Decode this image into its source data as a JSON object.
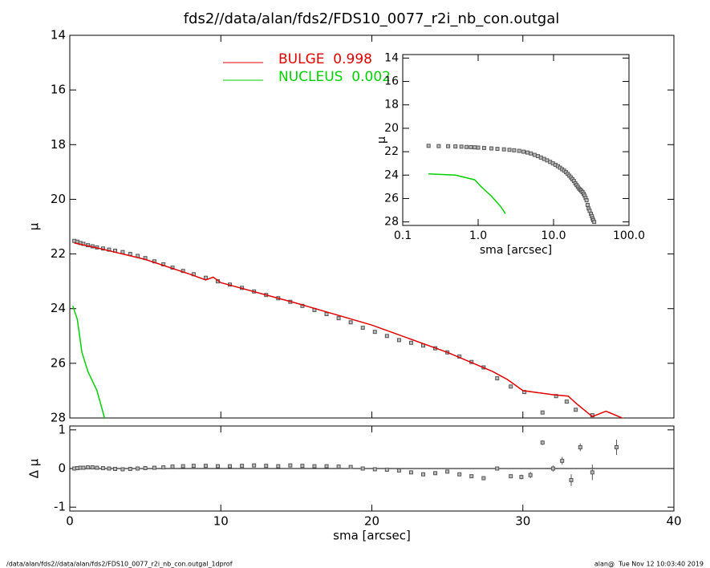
{
  "chart_data": [
    {
      "type": "scatter",
      "title": "fds2//data/alan/fds2/FDS10_0077_r2i_nb_con.outgal",
      "ylabel": "μ",
      "xlim": [
        0,
        40
      ],
      "ylim": [
        28,
        14
      ],
      "yticks": [
        14,
        16,
        18,
        20,
        22,
        24,
        26,
        28
      ],
      "series": [
        {
          "mode": "markers",
          "color": "#555555",
          "x": [
            0.3,
            0.5,
            0.7,
            0.9,
            1.2,
            1.5,
            1.8,
            2.2,
            2.6,
            3.0,
            3.5,
            4.0,
            4.5,
            5.0,
            5.6,
            6.2,
            6.8,
            7.5,
            8.2,
            9.0,
            9.8,
            10.6,
            11.4,
            12.2,
            13.0,
            13.8,
            14.6,
            15.4,
            16.2,
            17.0,
            17.8,
            18.6,
            19.4,
            20.2,
            21.0,
            21.8,
            22.6,
            23.4,
            24.2,
            25.0,
            25.8,
            26.6,
            27.4,
            28.3,
            29.2,
            30.1,
            31.3,
            32.2,
            32.9,
            33.5,
            34.6
          ],
          "values": [
            21.52,
            21.55,
            21.6,
            21.63,
            21.68,
            21.72,
            21.76,
            21.8,
            21.84,
            21.88,
            21.93,
            22.0,
            22.07,
            22.15,
            22.27,
            22.38,
            22.5,
            22.62,
            22.74,
            22.87,
            23.0,
            23.12,
            23.24,
            23.37,
            23.5,
            23.62,
            23.75,
            23.9,
            24.05,
            24.2,
            24.35,
            24.5,
            24.7,
            24.85,
            25.0,
            25.15,
            25.25,
            25.35,
            25.45,
            25.6,
            25.75,
            25.95,
            26.15,
            26.55,
            26.85,
            27.05,
            27.8,
            27.2,
            27.4,
            27.7,
            27.9
          ]
        },
        {
          "name": "BULGE  0.998",
          "mode": "lines",
          "color": "#e00000",
          "x": [
            0.3,
            2,
            5,
            8,
            9,
            9.5,
            10,
            15,
            20,
            25,
            28,
            29,
            30,
            32,
            33,
            33.5,
            34.6,
            35.5,
            37
          ],
          "values": [
            21.6,
            21.8,
            22.2,
            22.75,
            22.95,
            22.85,
            23.05,
            23.8,
            24.6,
            25.6,
            26.3,
            26.6,
            27.0,
            27.15,
            27.2,
            27.45,
            27.95,
            27.75,
            28.1
          ]
        },
        {
          "name": "NUCLEUS  0.002",
          "mode": "lines",
          "color": "#00d000",
          "x": [
            0.2,
            0.5,
            0.8,
            1.2,
            1.8,
            2.3
          ],
          "values": [
            23.9,
            24.4,
            25.6,
            26.3,
            27.0,
            28.0
          ]
        }
      ]
    },
    {
      "type": "scatter",
      "xlabel": "sma [arcsec]",
      "ylabel": "Δ μ",
      "xlim": [
        0,
        40
      ],
      "xticks": [
        0,
        10,
        20,
        30,
        40
      ],
      "ylim": [
        -1.1,
        1.1
      ],
      "yticks": [
        1,
        0,
        -1
      ],
      "series": [
        {
          "mode": "markers",
          "color": "#555555",
          "x": [
            0.3,
            0.5,
            0.7,
            0.9,
            1.2,
            1.5,
            1.8,
            2.2,
            2.6,
            3.0,
            3.5,
            4.0,
            4.5,
            5.0,
            5.6,
            6.2,
            6.8,
            7.5,
            8.2,
            9.0,
            9.8,
            10.6,
            11.4,
            12.2,
            13.0,
            13.8,
            14.6,
            15.4,
            16.2,
            17.0,
            17.8,
            18.6,
            19.4,
            20.2,
            21.0,
            21.8,
            22.6,
            23.4,
            24.2,
            25.0,
            25.8,
            26.6,
            27.4,
            28.3,
            29.2,
            29.9,
            30.5,
            31.3,
            32.0,
            32.6,
            33.2,
            33.8,
            34.6,
            36.2
          ],
          "values": [
            0.0,
            0.01,
            0.02,
            0.02,
            0.03,
            0.03,
            0.02,
            0.01,
            0.0,
            -0.01,
            -0.02,
            -0.01,
            0.0,
            0.01,
            0.02,
            0.03,
            0.05,
            0.06,
            0.07,
            0.07,
            0.06,
            0.06,
            0.07,
            0.08,
            0.07,
            0.06,
            0.08,
            0.07,
            0.06,
            0.06,
            0.05,
            0.04,
            0.0,
            -0.02,
            -0.03,
            -0.05,
            -0.1,
            -0.15,
            -0.12,
            -0.08,
            -0.15,
            -0.2,
            -0.25,
            0.0,
            -0.2,
            -0.22,
            -0.17,
            0.67,
            0.0,
            0.2,
            -0.3,
            0.55,
            -0.1,
            0.55
          ],
          "errors": [
            0.02,
            0.02,
            0.02,
            0.02,
            0.02,
            0.02,
            0.02,
            0.02,
            0.02,
            0.02,
            0.02,
            0.02,
            0.02,
            0.02,
            0.02,
            0.02,
            0.02,
            0.02,
            0.02,
            0.02,
            0.02,
            0.02,
            0.02,
            0.02,
            0.02,
            0.02,
            0.02,
            0.02,
            0.02,
            0.02,
            0.02,
            0.02,
            0.02,
            0.02,
            0.02,
            0.02,
            0.02,
            0.02,
            0.02,
            0.02,
            0.02,
            0.02,
            0.02,
            0.03,
            0.05,
            0.06,
            0.08,
            0.06,
            0.08,
            0.1,
            0.15,
            0.1,
            0.2,
            0.2
          ]
        }
      ]
    },
    {
      "type": "scatter",
      "log_x": true,
      "xlabel": "sma [arcsec]",
      "ylabel": "μ",
      "xlim": [
        0.1,
        100
      ],
      "xticks": [
        0.1,
        {
          "value": 1,
          "label": "1.0"
        },
        {
          "value": 10,
          "label": "10.0"
        },
        {
          "value": 100,
          "label": "100.0"
        }
      ],
      "ylim": [
        28.3,
        13.7
      ],
      "yticks": [
        14,
        16,
        18,
        20,
        22,
        24,
        26,
        28
      ],
      "series": [
        {
          "mode": "markers",
          "color": "#555555",
          "x": [
            0.22,
            0.3,
            0.4,
            0.5,
            0.6,
            0.7,
            0.8,
            0.9,
            1.0,
            1.2,
            1.5,
            1.8,
            2.2,
            2.6,
            3.0,
            3.5,
            4.0,
            4.5,
            5.0,
            5.6,
            6.2,
            6.8,
            7.5,
            8.2,
            9.0,
            9.8,
            10.6,
            11.4,
            12.2,
            13.0,
            13.8,
            14.6,
            15.4,
            16.2,
            17.0,
            17.8,
            18.6,
            19.4,
            20.2,
            21.0,
            21.8,
            22.6,
            23.4,
            24.2,
            25.0,
            25.8,
            26.6,
            27.4,
            28.3,
            29.2,
            30.1,
            31.3,
            32.2,
            32.9,
            33.5,
            34.6
          ],
          "values": [
            21.5,
            21.52,
            21.53,
            21.55,
            21.57,
            21.6,
            21.61,
            21.63,
            21.65,
            21.68,
            21.72,
            21.76,
            21.8,
            21.84,
            21.88,
            21.93,
            22.0,
            22.07,
            22.15,
            22.27,
            22.38,
            22.5,
            22.62,
            22.74,
            22.87,
            23.0,
            23.12,
            23.24,
            23.37,
            23.5,
            23.62,
            23.75,
            23.9,
            24.05,
            24.2,
            24.35,
            24.5,
            24.7,
            24.85,
            25.0,
            25.15,
            25.25,
            25.35,
            25.45,
            25.6,
            25.75,
            25.95,
            26.15,
            26.55,
            26.85,
            27.05,
            27.3,
            27.5,
            27.7,
            27.85,
            28.0
          ]
        },
        {
          "mode": "lines",
          "color": "#00d000",
          "x": [
            0.22,
            0.5,
            0.9,
            1.1,
            1.5,
            2.0,
            2.3
          ],
          "values": [
            23.9,
            24.0,
            24.4,
            25.0,
            25.8,
            26.7,
            27.3
          ]
        }
      ]
    }
  ],
  "footer": {
    "left": "/data/alan/fds2//data/alan/fds2/FDS10_0077_r2i_nb_con.outgal_1dprof",
    "right": "alan@  Tue Nov 12 10:03:40 2019"
  }
}
